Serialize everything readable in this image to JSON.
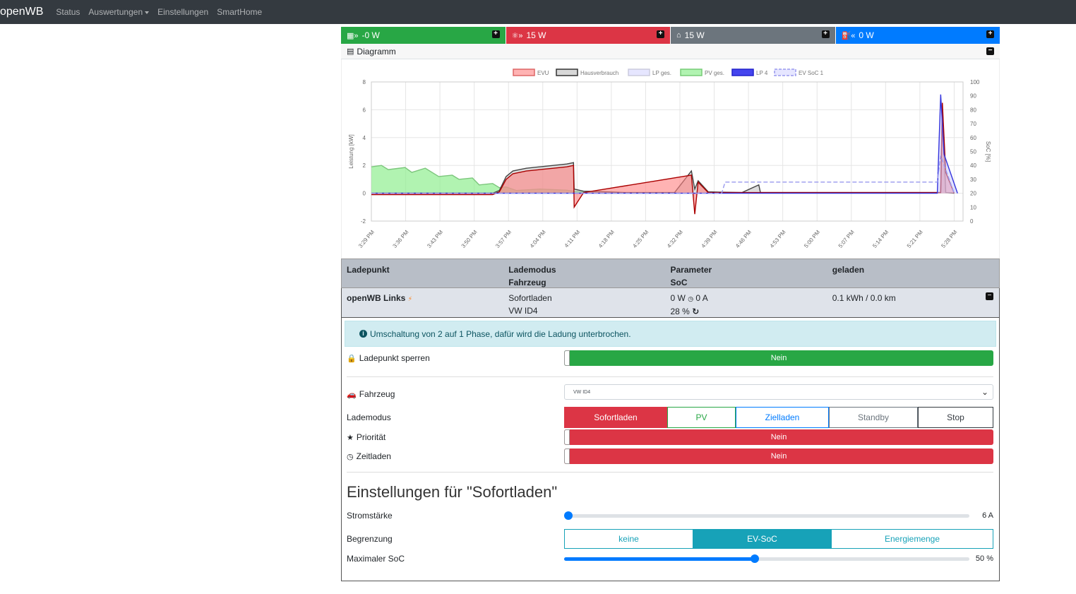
{
  "navbar": {
    "brand": "openWB",
    "links": [
      "Status",
      "Auswertungen",
      "Einstellungen",
      "SmartHome"
    ]
  },
  "cards": [
    {
      "value": "-0 W",
      "color": "#28a745",
      "icon": "grid-icon"
    },
    {
      "value": "15 W",
      "color": "#dc3545",
      "icon": "powerline-icon"
    },
    {
      "value": "15 W",
      "color": "#6c757d",
      "icon": "home-icon"
    },
    {
      "value": "0 W",
      "color": "#007bff",
      "icon": "charge-icon"
    }
  ],
  "diagram": {
    "title": "Diagramm"
  },
  "chart_data": {
    "type": "area",
    "legend": [
      "EVU",
      "Hausverbrauch",
      "LP ges.",
      "PV ges.",
      "LP 4",
      "EV SoC 1"
    ],
    "ylabel": "Leistung [kW]",
    "y2label": "SoC [%]",
    "ylim": [
      -2,
      8
    ],
    "y2lim": [
      0,
      100
    ],
    "yticks": [
      -2,
      0,
      2,
      4,
      6,
      8
    ],
    "y2ticks": [
      0,
      10,
      20,
      30,
      40,
      50,
      60,
      70,
      80,
      90,
      100
    ],
    "xticks": [
      "3:29 PM",
      "3:36 PM",
      "3:43 PM",
      "3:50 PM",
      "3:57 PM",
      "4:04 PM",
      "4:11 PM",
      "4:18 PM",
      "4:25 PM",
      "4:32 PM",
      "4:39 PM",
      "4:46 PM",
      "4:53 PM",
      "5:00 PM",
      "5:07 PM",
      "5:14 PM",
      "5:21 PM",
      "5:28 PM"
    ],
    "series": [
      {
        "name": "PV ges.",
        "x": [
          0,
          0.3,
          0.5,
          1,
          1.2,
          1.6,
          2,
          2.4,
          2.6,
          3,
          3.2,
          3.6,
          3.8,
          4,
          4.3,
          5,
          5.5,
          5.8,
          6,
          6.2,
          6.5,
          6.8,
          7
        ],
        "values": [
          1.9,
          2.0,
          1.7,
          1.85,
          1.5,
          1.8,
          1.2,
          1.3,
          1.0,
          1.1,
          0.6,
          0.7,
          0.4,
          0.45,
          0.2,
          0.3,
          0.25,
          0.22,
          0.15,
          0.1,
          0.05,
          0.02,
          0
        ]
      },
      {
        "name": "Hausverbrauch",
        "x": [
          0,
          3.6,
          3.8,
          4,
          4.2,
          4.6,
          5,
          5.4,
          5.8,
          6,
          6.02,
          6.3,
          7,
          7.5,
          8,
          9,
          9.5,
          9.6,
          9.7,
          10,
          11,
          11.5,
          11.55,
          11.6,
          14,
          16,
          16.9,
          16.95,
          17.05,
          17.3
        ],
        "values": [
          0,
          0,
          0.2,
          1.2,
          1.6,
          1.8,
          1.9,
          2.0,
          2.1,
          2.2,
          0.3,
          0.15,
          0.1,
          0.05,
          0.05,
          0.05,
          1.6,
          0.3,
          0.9,
          0.1,
          0.05,
          0.6,
          0.05,
          0.05,
          0.05,
          0.05,
          0.05,
          5.8,
          0.05,
          0
        ]
      },
      {
        "name": "EVU",
        "x": [
          0,
          3.6,
          3.8,
          4,
          4.2,
          4.6,
          5,
          5.4,
          5.8,
          6,
          6.02,
          6.3,
          9.5,
          9.6,
          9.7,
          10,
          16.9,
          16.95,
          17.05,
          17.3
        ],
        "values": [
          -0.1,
          -0.1,
          0.1,
          1.0,
          1.4,
          1.6,
          1.7,
          1.8,
          1.9,
          2.0,
          -1.0,
          0.05,
          1.3,
          -1.5,
          0.8,
          0.05,
          0.05,
          6.5,
          1.5,
          0
        ]
      },
      {
        "name": "LP 4",
        "x": [
          0,
          16.8,
          16.9,
          17.0,
          17.4
        ],
        "values": [
          0,
          0,
          7.1,
          2.8,
          0
        ]
      },
      {
        "name": "EV SoC 1",
        "x": [
          0,
          10.4,
          10.5,
          16.8,
          16.9,
          17.3
        ],
        "values": [
          20,
          20,
          28,
          28,
          47,
          20
        ]
      }
    ]
  },
  "table": {
    "headers": [
      [
        "Ladepunkt",
        ""
      ],
      [
        "Lademodus",
        "Fahrzeug"
      ],
      [
        "Parameter",
        "SoC"
      ],
      [
        "geladen",
        ""
      ]
    ],
    "row": {
      "name": "openWB Links",
      "mode": "Sofortladen",
      "vehicle": "VW ID4",
      "power": "0 W",
      "current": "0 A",
      "soc": "28 %",
      "charged": "0.1 kWh / 0.0 km"
    }
  },
  "alert": "Umschaltung von 2 auf 1 Phase, dafür wird die Ladung unterbrochen.",
  "controls": {
    "sperren": {
      "label": "Ladepunkt sperren",
      "value": "Nein"
    },
    "fahrzeug": {
      "label": "Fahrzeug",
      "value": "VW ID4"
    },
    "lademodus": {
      "label": "Lademodus",
      "options": [
        "Sofortladen",
        "PV",
        "Zielladen",
        "Standby",
        "Stop"
      ],
      "selected": "Sofortladen"
    },
    "prioritaet": {
      "label": "Priorität",
      "value": "Nein"
    },
    "zeitladen": {
      "label": "Zeitladen",
      "value": "Nein"
    }
  },
  "settings": {
    "title": "Einstellungen für \"Sofortladen\"",
    "stromstaerke": {
      "label": "Stromstärke",
      "value": "6 A",
      "fraction": 0.0
    },
    "begrenzung": {
      "label": "Begrenzung",
      "options": [
        "keine",
        "EV-SoC",
        "Energiemenge"
      ],
      "selected": "EV-SoC"
    },
    "maxsoc": {
      "label": "Maximaler SoC",
      "value": "50 %",
      "fraction": 0.47
    }
  }
}
